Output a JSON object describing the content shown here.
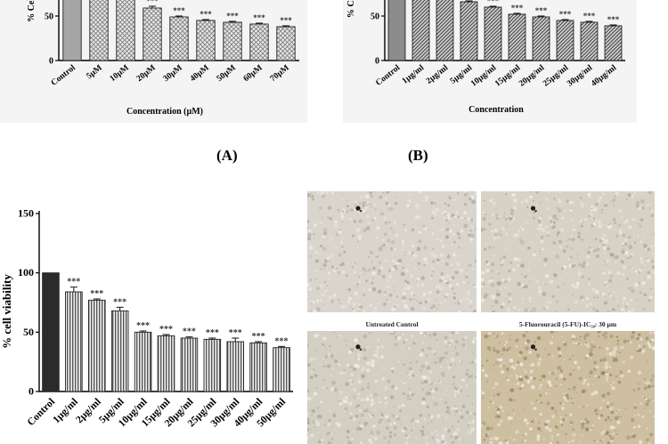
{
  "panels": {
    "A": {
      "caption": "(A)",
      "chart_data": {
        "type": "bar",
        "title": "",
        "xlabel": "Concentration (µM)",
        "ylabel": "% Cell",
        "ylim": [
          0,
          100
        ],
        "yticks": [
          0,
          50
        ],
        "categories": [
          "Control",
          "5µM",
          "10µM",
          "20µM",
          "30µM",
          "40µM",
          "50µM",
          "60µM",
          "70µM"
        ],
        "values": [
          100,
          95,
          73,
          59,
          49,
          45,
          43,
          41,
          38
        ],
        "errors": [
          0,
          1,
          1,
          2,
          1,
          1,
          1,
          1,
          1
        ],
        "significance": [
          "",
          "",
          "",
          "***",
          "***",
          "***",
          "***",
          "***",
          "***"
        ],
        "colors": {
          "control": "#a6a6a6",
          "treated_pattern": "crosshatch"
        }
      }
    },
    "B": {
      "caption": "(B)",
      "chart_data": {
        "type": "bar",
        "title": "",
        "xlabel": "Concentration",
        "ylabel": "% Ce",
        "ylim": [
          0,
          100
        ],
        "yticks": [
          0,
          50
        ],
        "categories": [
          "Control",
          "1µg/ml",
          "2µg/ml",
          "5µg/ml",
          "10µg/ml",
          "15µg/ml",
          "20µg/ml",
          "25µg/ml",
          "30µg/ml",
          "40µg/ml"
        ],
        "values": [
          100,
          72,
          71,
          66,
          60,
          52,
          49,
          45,
          43,
          39
        ],
        "errors": [
          0,
          1,
          1,
          1,
          1,
          1,
          1,
          1,
          1,
          1
        ],
        "significance": [
          "",
          "",
          "",
          "",
          "***",
          "***",
          "***",
          "***",
          "***",
          "***"
        ],
        "colors": {
          "control": "#8c8c8c",
          "treated_pattern": "diagonal"
        }
      }
    },
    "C": {
      "chart_data": {
        "type": "bar",
        "title": "",
        "xlabel": "",
        "ylabel": "% cell viability",
        "ylim": [
          0,
          150
        ],
        "yticks": [
          0,
          50,
          100,
          150
        ],
        "categories": [
          "Control",
          "1µg/ml",
          "2µg/ml",
          "5µg/ml",
          "10µg/ml",
          "15µg/ml",
          "20µg/ml",
          "25µg/ml",
          "30µg/ml",
          "40µg/ml",
          "50µg/ml"
        ],
        "values": [
          100,
          84,
          77,
          68,
          50,
          47,
          45,
          44,
          42,
          41,
          37
        ],
        "errors": [
          0,
          4,
          1,
          3,
          1,
          1,
          1,
          1,
          3,
          1,
          1
        ],
        "significance": [
          "",
          "***",
          "***",
          "***",
          "***",
          "***",
          "***",
          "***",
          "***",
          "***",
          "***"
        ],
        "colors": {
          "control": "#2b2b2b",
          "treated_pattern": "vertical-stripes"
        }
      }
    },
    "D": {
      "images": [
        {
          "label": "Untreated Control",
          "tone": "#d9d5cc"
        },
        {
          "label": "5-Fluorouracil (5-FU)-IC₅₀: 30 µm",
          "tone": "#d8d2c6"
        },
        {
          "label": "",
          "tone": "#d4cfc3"
        },
        {
          "label": "",
          "tone": "#cdbf9f"
        }
      ]
    }
  }
}
